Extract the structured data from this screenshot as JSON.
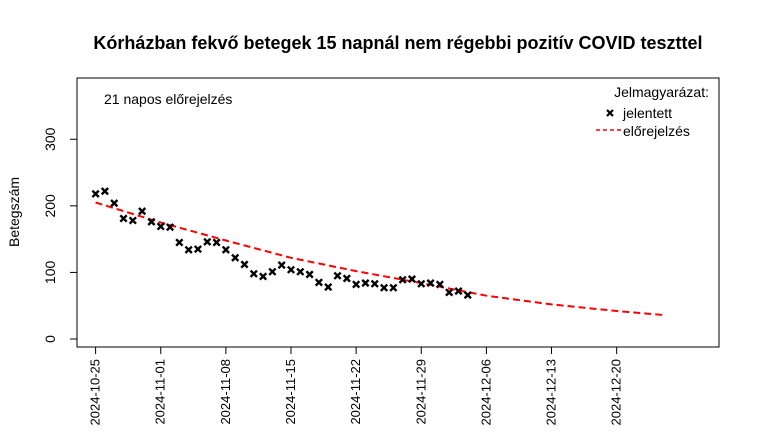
{
  "chart_data": {
    "type": "scatter",
    "title": "Kórházban fekvő betegek 15 napnál nem régebbi pozitív COVID teszttel",
    "subtitle": "21 napos előrejelzés",
    "xlabel": "",
    "ylabel": "Betegszám",
    "x_tick_labels": [
      "2024-10-25",
      "2024-11-01",
      "2024-11-08",
      "2024-11-15",
      "2024-11-22",
      "2024-11-29",
      "2024-12-06",
      "2024-12-13",
      "2024-12-20"
    ],
    "y_ticks": [
      0,
      100,
      200,
      300
    ],
    "xlim": [
      "2024-10-23",
      "2024-12-31"
    ],
    "ylim": [
      -12,
      392
    ],
    "grid": false,
    "legend": {
      "title": "Jelmagyarázat:",
      "position": "top-right",
      "entries": [
        {
          "label": "jelentett",
          "marker": "x",
          "color": "#000000"
        },
        {
          "label": "előrejelzés",
          "line": "dashed",
          "color": "#ff0000"
        }
      ]
    },
    "series": [
      {
        "name": "jelentett",
        "kind": "points",
        "color": "#000000",
        "points": [
          {
            "x": "2024-10-25",
            "y": 218
          },
          {
            "x": "2024-10-26",
            "y": 222
          },
          {
            "x": "2024-10-27",
            "y": 204
          },
          {
            "x": "2024-10-28",
            "y": 181
          },
          {
            "x": "2024-10-29",
            "y": 178
          },
          {
            "x": "2024-10-30",
            "y": 192
          },
          {
            "x": "2024-10-31",
            "y": 176
          },
          {
            "x": "2024-11-01",
            "y": 169
          },
          {
            "x": "2024-11-02",
            "y": 168
          },
          {
            "x": "2024-11-03",
            "y": 145
          },
          {
            "x": "2024-11-04",
            "y": 134
          },
          {
            "x": "2024-11-05",
            "y": 135
          },
          {
            "x": "2024-11-06",
            "y": 146
          },
          {
            "x": "2024-11-07",
            "y": 145
          },
          {
            "x": "2024-11-08",
            "y": 134
          },
          {
            "x": "2024-11-09",
            "y": 122
          },
          {
            "x": "2024-11-10",
            "y": 112
          },
          {
            "x": "2024-11-11",
            "y": 98
          },
          {
            "x": "2024-11-12",
            "y": 94
          },
          {
            "x": "2024-11-13",
            "y": 101
          },
          {
            "x": "2024-11-14",
            "y": 111
          },
          {
            "x": "2024-11-15",
            "y": 104
          },
          {
            "x": "2024-11-16",
            "y": 101
          },
          {
            "x": "2024-11-17",
            "y": 97
          },
          {
            "x": "2024-11-18",
            "y": 85
          },
          {
            "x": "2024-11-19",
            "y": 78
          },
          {
            "x": "2024-11-20",
            "y": 95
          },
          {
            "x": "2024-11-21",
            "y": 91
          },
          {
            "x": "2024-11-22",
            "y": 82
          },
          {
            "x": "2024-11-23",
            "y": 84
          },
          {
            "x": "2024-11-24",
            "y": 83
          },
          {
            "x": "2024-11-25",
            "y": 77
          },
          {
            "x": "2024-11-26",
            "y": 77
          },
          {
            "x": "2024-11-27",
            "y": 89
          },
          {
            "x": "2024-11-28",
            "y": 90
          },
          {
            "x": "2024-11-29",
            "y": 83
          },
          {
            "x": "2024-11-30",
            "y": 84
          },
          {
            "x": "2024-12-01",
            "y": 82
          },
          {
            "x": "2024-12-02",
            "y": 70
          },
          {
            "x": "2024-12-03",
            "y": 72
          },
          {
            "x": "2024-12-04",
            "y": 66
          }
        ]
      },
      {
        "name": "előrejelzés",
        "kind": "dashed-line",
        "color": "#ff0000",
        "points": [
          {
            "x": "2024-10-25",
            "y": 205
          },
          {
            "x": "2024-11-01",
            "y": 175
          },
          {
            "x": "2024-11-08",
            "y": 148
          },
          {
            "x": "2024-11-15",
            "y": 122
          },
          {
            "x": "2024-11-22",
            "y": 102
          },
          {
            "x": "2024-11-29",
            "y": 84
          },
          {
            "x": "2024-12-06",
            "y": 65
          },
          {
            "x": "2024-12-13",
            "y": 52
          },
          {
            "x": "2024-12-20",
            "y": 42
          },
          {
            "x": "2024-12-25",
            "y": 36
          }
        ]
      }
    ]
  }
}
